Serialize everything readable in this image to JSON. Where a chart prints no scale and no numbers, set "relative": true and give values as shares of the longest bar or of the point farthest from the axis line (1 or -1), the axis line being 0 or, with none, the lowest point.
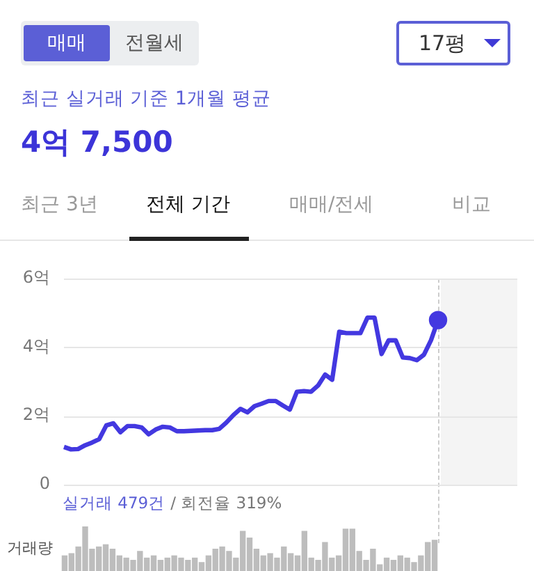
{
  "chart_data": [
    {
      "type": "other",
      "annotations": [
        "매매",
        "전월세",
        "17평",
        "최근 실거래 기준 1개월 평균",
        "4억 7,500",
        "최근 3년",
        "전체 기간",
        "매매/전세",
        "비교"
      ]
    },
    {
      "type": "line",
      "categories": [
        null,
        null,
        null,
        null,
        null,
        null,
        null,
        null,
        null,
        null,
        null,
        null,
        null,
        null,
        null,
        null,
        null,
        null,
        null,
        null,
        null,
        null,
        null,
        null,
        null,
        null,
        null,
        null,
        null,
        null,
        null,
        null,
        null,
        null,
        null,
        null,
        null,
        null,
        null,
        null,
        null,
        null,
        null,
        null,
        null,
        null,
        null,
        null,
        null,
        null,
        null,
        null,
        null,
        null
      ],
      "series": [
        {
          "color": "#4338e0",
          "values": [
            1.09,
            1.02,
            1.03,
            1.14,
            1.22,
            1.32,
            1.72,
            1.78,
            1.52,
            1.7,
            1.7,
            1.66,
            1.46,
            1.6,
            1.68,
            1.66,
            1.55,
            1.55,
            1.56,
            1.57,
            1.58,
            1.58,
            1.62,
            1.8,
            2.02,
            2.2,
            2.1,
            2.28,
            2.35,
            2.43,
            2.43,
            2.3,
            2.18,
            2.7,
            2.72,
            2.7,
            2.88,
            3.2,
            3.05,
            4.45,
            4.41,
            4.41,
            4.41,
            4.86,
            4.86,
            3.8,
            4.2,
            4.2,
            3.7,
            3.68,
            3.62,
            3.78,
            4.2,
            4.79
          ]
        }
      ],
      "ylim": [
        0,
        6
      ],
      "yticks": [
        0,
        {
          "value": 2,
          "label": "2억"
        },
        {
          "value": 4,
          "label": "4억"
        },
        {
          "value": 6,
          "label": "6억"
        }
      ],
      "grid": "y",
      "annotations": [
        "실거래 479건",
        "/ 회전율 319%"
      ]
    },
    {
      "type": "bar",
      "relative": true,
      "ylabel": "거래량",
      "tick_labels": false,
      "color": "#bdbdbd",
      "categories": [
        null,
        null,
        null,
        null,
        null,
        null,
        null,
        null,
        null,
        null,
        null,
        null,
        null,
        null,
        null,
        null,
        null,
        null,
        null,
        null,
        null,
        null,
        null,
        null,
        null,
        null,
        null,
        null,
        null,
        null,
        null,
        null,
        null,
        null,
        null,
        null,
        null,
        null,
        null,
        null,
        null,
        null,
        null,
        null,
        null,
        null,
        null,
        null,
        null,
        null,
        null,
        null,
        null,
        null,
        null
      ],
      "values": [
        0.35,
        0.4,
        0.55,
        1,
        0.5,
        0.55,
        0.6,
        0.5,
        0.35,
        0.3,
        0.25,
        0.45,
        0.3,
        0.35,
        0.25,
        0.3,
        0.35,
        0.3,
        0.25,
        0.3,
        0.2,
        0.35,
        0.5,
        0.55,
        0.45,
        0.3,
        0.9,
        0.75,
        0.5,
        0.35,
        0.4,
        0.3,
        0.55,
        0.4,
        0.35,
        0.9,
        0.3,
        0.25,
        0.65,
        0.3,
        0.35,
        0.95,
        0.95,
        0.45,
        0.25,
        0.5,
        0.15,
        0.3,
        0.25,
        0.35,
        0.3,
        0.2,
        0.35,
        0.65,
        0.7
      ]
    }
  ]
}
